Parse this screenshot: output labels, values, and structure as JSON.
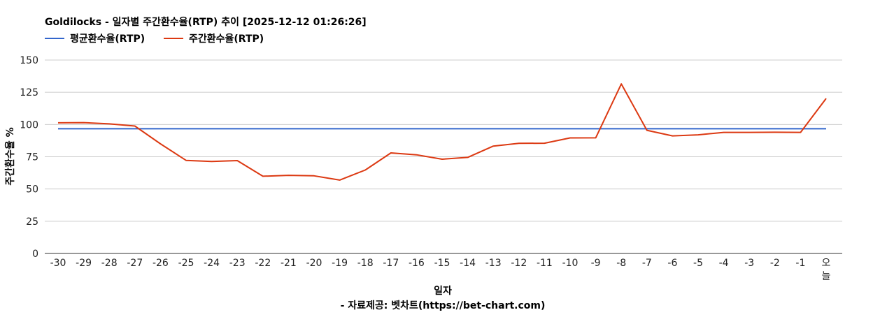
{
  "chart_data": {
    "type": "line",
    "title": "Goldilocks - 일자별 주간환수율(RTP) 추이 [2025-12-12 01:26:26]",
    "xlabel": "일자",
    "ylabel": "주간환수율 %",
    "source": "- 자료제공: 벳차트(https://bet-chart.com)",
    "ylim": [
      0,
      150
    ],
    "yticks": [
      0,
      25,
      50,
      75,
      100,
      125,
      150
    ],
    "grid": true,
    "legend_position": "top-left",
    "categories": [
      "-30",
      "-29",
      "-28",
      "-27",
      "-26",
      "-25",
      "-24",
      "-23",
      "-22",
      "-21",
      "-20",
      "-19",
      "-18",
      "-17",
      "-16",
      "-15",
      "-14",
      "-13",
      "-12",
      "-11",
      "-10",
      "-9",
      "-8",
      "-7",
      "-6",
      "-5",
      "-4",
      "-3",
      "-2",
      "-1",
      "오늘"
    ],
    "series": [
      {
        "name": "평균환수율(RTP)",
        "color": "#3366cc",
        "values": [
          96.7,
          96.7,
          96.7,
          96.7,
          96.7,
          96.7,
          96.7,
          96.7,
          96.7,
          96.7,
          96.7,
          96.7,
          96.7,
          96.7,
          96.7,
          96.7,
          96.7,
          96.7,
          96.7,
          96.7,
          96.7,
          96.7,
          96.7,
          96.7,
          96.7,
          96.7,
          96.7,
          96.7,
          96.7,
          96.7,
          96.7
        ]
      },
      {
        "name": "주간환수율(RTP)",
        "color": "#dc3912",
        "values": [
          101.3,
          101.5,
          100.5,
          98.8,
          85,
          72.2,
          71.3,
          72,
          59.9,
          60.6,
          60.2,
          56.9,
          64.7,
          78,
          76.5,
          73.1,
          74.5,
          83.3,
          85.4,
          85.5,
          89.6,
          89.7,
          131.5,
          95.5,
          91.2,
          92,
          93.9,
          93.9,
          94,
          93.9,
          120.2
        ]
      }
    ]
  }
}
